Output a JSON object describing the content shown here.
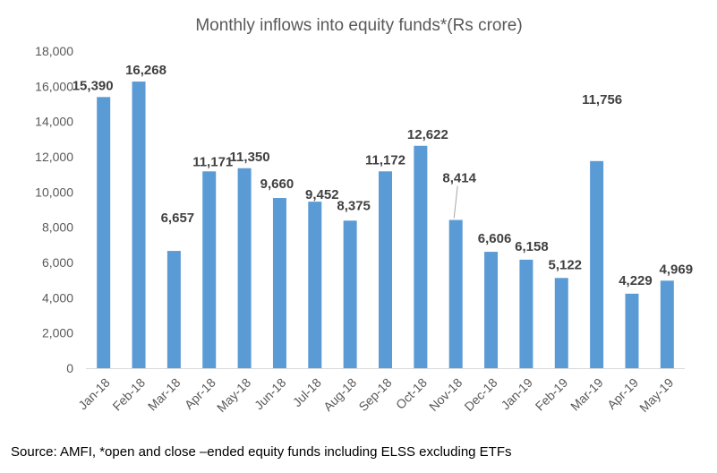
{
  "chart_data": {
    "type": "bar",
    "title": "Monthly inflows into equity funds*(Rs crore)",
    "categories": [
      "Jan-18",
      "Feb-18",
      "Mar-18",
      "Apr-18",
      "May-18",
      "Jun-18",
      "Jul-18",
      "Aug-18",
      "Sep-18",
      "Oct-18",
      "Nov-18",
      "Dec-18",
      "Jan-19",
      "Feb-19",
      "Mar-19",
      "Apr-19",
      "May-19"
    ],
    "values": [
      15390,
      16268,
      6657,
      11171,
      11350,
      9660,
      9452,
      8375,
      11172,
      12622,
      8414,
      6606,
      6158,
      5122,
      11756,
      4229,
      4969
    ],
    "data_labels": [
      "15,390",
      "16,268",
      "6,657",
      "11,171",
      "11,350",
      "9,660",
      "9,452",
      "8,375",
      "11,172",
      "12,622",
      "8,414",
      "6,606",
      "6,158",
      "5,122",
      "11,756",
      "4,229",
      "4,969"
    ],
    "yticks": [
      "0",
      "2,000",
      "4,000",
      "6,000",
      "8,000",
      "10,000",
      "12,000",
      "14,000",
      "16,000",
      "18,000"
    ],
    "ylim": [
      0,
      18000
    ],
    "xlabel": "",
    "ylabel": "",
    "grid": false,
    "bar_color": "#5B9BD5"
  },
  "source_note": "Source: AMFI, *open and close –ended equity funds including ELSS excluding ETFs"
}
